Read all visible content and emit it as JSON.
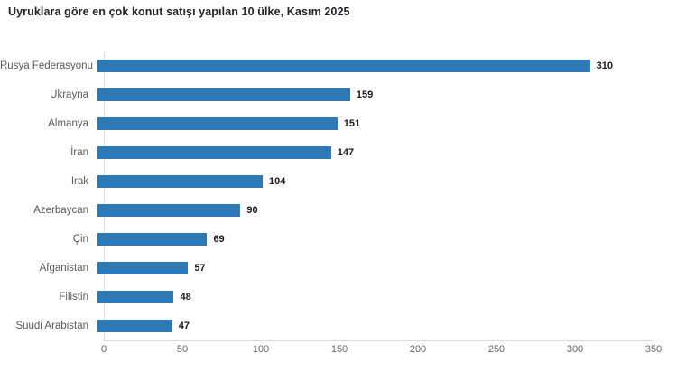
{
  "chart_data": {
    "type": "bar",
    "orientation": "horizontal",
    "title": "Uyruklara göre en çok konut satışı yapılan 10 ülke, Kasım 2025",
    "categories": [
      "Rusya Federasyonu",
      "Ukrayna",
      "Almanya",
      "İran",
      "Irak",
      "Azerbaycan",
      "Çin",
      "Afganistan",
      "Filistin",
      "Suudi Arabistan"
    ],
    "values": [
      310,
      159,
      151,
      147,
      104,
      90,
      69,
      57,
      48,
      47
    ],
    "xlabel": "",
    "ylabel": "",
    "xlim": [
      0,
      350
    ],
    "xticks": [
      0,
      50,
      100,
      150,
      200,
      250,
      300,
      350
    ],
    "grid": false,
    "legend": "none",
    "value_labels_shown": true,
    "colors": {
      "bar": "#2E78B5",
      "title": "#212327",
      "category_label": "#595959",
      "value_label": "#1a1a1a",
      "tick_label": "#666666",
      "axis_line": "#d9d9d9",
      "background": "#ffffff"
    }
  }
}
